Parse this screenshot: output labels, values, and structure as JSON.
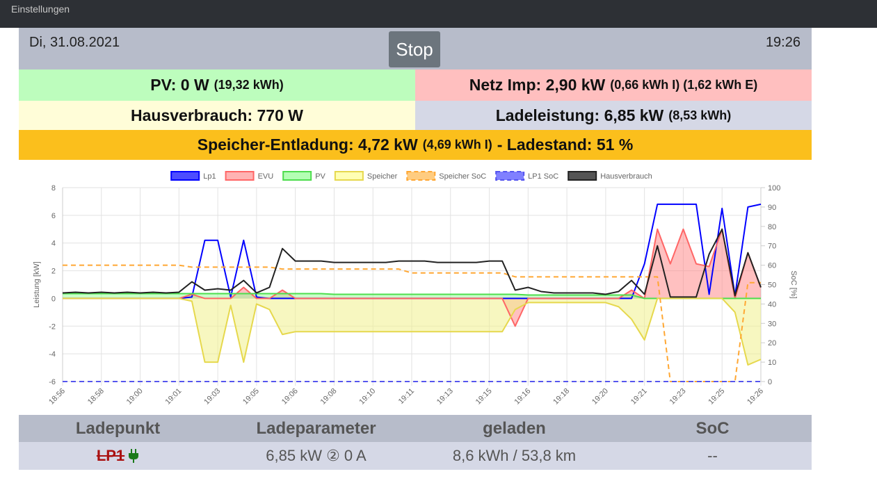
{
  "topbar": {
    "title": "Einstellungen"
  },
  "header": {
    "date": "Di, 31.08.2021",
    "button": "Stop",
    "time": "19:26"
  },
  "status": {
    "pv": {
      "main": "PV: 0 W",
      "detail": "(19,32 kWh)"
    },
    "netz": {
      "main": "Netz Imp: 2,90 kW",
      "detail": "(0,66 kWh I) (1,62 kWh E)"
    },
    "haus": {
      "main": "Hausverbrauch: 770 W"
    },
    "lade": {
      "main": "Ladeleistung: 6,85 kW",
      "detail": "(8,53 kWh)"
    },
    "speicher": {
      "main": "Speicher-Entladung: 4,72 kW",
      "detail": "(4,69 kWh I)",
      "soc": "- Ladestand: 51 %"
    }
  },
  "chart_data": {
    "type": "line",
    "ylabel": "Leistung [kW]",
    "y2label": "SoC [%]",
    "ylim": [
      -6,
      8
    ],
    "yticks": [
      -6,
      -4,
      -2,
      0,
      2,
      4,
      6,
      8
    ],
    "y2lim": [
      0,
      100
    ],
    "y2ticks": [
      0,
      10,
      20,
      30,
      40,
      50,
      60,
      70,
      80,
      90,
      100
    ],
    "grid": true,
    "legend": "top",
    "x": [
      "18:56",
      null,
      null,
      "18:58",
      null,
      null,
      "19:00",
      null,
      null,
      "19:01",
      null,
      null,
      "19:03",
      null,
      null,
      "19:05",
      null,
      null,
      "19:06",
      null,
      null,
      "19:08",
      null,
      null,
      "19:10",
      null,
      null,
      "19:11",
      null,
      null,
      "19:13",
      null,
      null,
      "19:15",
      null,
      null,
      "19:16",
      null,
      null,
      "19:18",
      null,
      null,
      "19:20",
      null,
      null,
      "19:21",
      null,
      null,
      "19:23",
      null,
      null,
      "19:25",
      null,
      null,
      "19:26"
    ],
    "series": [
      {
        "name": "Lp1",
        "color": "#0000ff",
        "legend_fill": "#4d4dff",
        "values": [
          0,
          0,
          0,
          0,
          0,
          0,
          0,
          0,
          0,
          0,
          0.1,
          4.2,
          4.2,
          0.1,
          4.2,
          0.1,
          0,
          0,
          0,
          0,
          0,
          0,
          0,
          0,
          0,
          0,
          0,
          0,
          0,
          0,
          0,
          0,
          0,
          0,
          0,
          0,
          0,
          0,
          0,
          0,
          0,
          0,
          0,
          0,
          0,
          2.5,
          6.8,
          6.8,
          6.8,
          6.8,
          0.3,
          6.5,
          0.2,
          6.6,
          6.8
        ]
      },
      {
        "name": "EVU",
        "color": "#ff6666",
        "legend_fill": "#ffb3b3",
        "fill_color": "rgba(255,130,130,0.5)",
        "values": [
          0,
          0,
          0,
          0,
          0,
          0,
          0,
          0,
          0,
          0,
          0.3,
          0,
          0,
          0,
          0.8,
          0,
          0,
          0.6,
          0,
          0,
          0,
          0,
          0,
          0,
          0,
          0,
          0,
          0,
          0,
          0,
          0,
          0,
          0,
          0,
          0,
          -2.0,
          0,
          0,
          0,
          0,
          0,
          0,
          0,
          0,
          0.6,
          0,
          5.0,
          2.5,
          5.0,
          2.5,
          2.3,
          5.0,
          0,
          3.3,
          0.8
        ]
      },
      {
        "name": "PV",
        "color": "#4ddd4d",
        "legend_fill": "#b3ffb3",
        "fill_color": "rgba(150,255,150,0.5)",
        "values": [
          0.35,
          0.35,
          0.35,
          0.35,
          0.35,
          0.35,
          0.35,
          0.35,
          0.35,
          0.35,
          0.35,
          0.35,
          0.35,
          0.35,
          0.35,
          0.35,
          0.35,
          0.35,
          0.35,
          0.35,
          0.35,
          0.3,
          0.3,
          0.3,
          0.3,
          0.3,
          0.3,
          0.3,
          0.3,
          0.3,
          0.3,
          0.3,
          0.3,
          0.3,
          0.3,
          0.3,
          0.25,
          0.25,
          0.25,
          0.25,
          0.25,
          0.25,
          0.25,
          0.25,
          0.25,
          0,
          0,
          0,
          0,
          0,
          0,
          0,
          0,
          0,
          0
        ]
      },
      {
        "name": "Speicher",
        "color": "#e6d84d",
        "legend_fill": "#ffffb3",
        "fill_color": "rgba(240,240,140,0.55)",
        "values": [
          0,
          0,
          0,
          0,
          0,
          0,
          0,
          0,
          0,
          0,
          -0.2,
          -4.6,
          -4.6,
          -0.5,
          -4.6,
          -0.4,
          -0.8,
          -2.6,
          -2.4,
          -2.4,
          -2.4,
          -2.4,
          -2.4,
          -2.4,
          -2.4,
          -2.4,
          -2.4,
          -2.4,
          -2.4,
          -2.4,
          -2.4,
          -2.4,
          -2.4,
          -2.4,
          -2.4,
          -0.8,
          -0.3,
          -0.3,
          -0.3,
          -0.3,
          -0.3,
          -0.3,
          -0.3,
          -0.6,
          -1.5,
          -3.0,
          0,
          0,
          0,
          0,
          0,
          0,
          -1.0,
          -4.8,
          -4.4
        ]
      },
      {
        "name": "Speicher SoC",
        "color": "#ffa733",
        "legend_fill": "#ffcc80",
        "dashed": true,
        "axis": "y2",
        "values": [
          60,
          60,
          60,
          60,
          60,
          60,
          60,
          60,
          60,
          60,
          59,
          59,
          59,
          59,
          59,
          59,
          59,
          58,
          58,
          58,
          58,
          58,
          58,
          58,
          58,
          58,
          58,
          56,
          56,
          56,
          56,
          56,
          56,
          56,
          56,
          54,
          54,
          54,
          54,
          54,
          54,
          54,
          54,
          54,
          54,
          54,
          54,
          0,
          0,
          0,
          0,
          0,
          0,
          51,
          51
        ]
      },
      {
        "name": "LP1 SoC",
        "color": "#5555ee",
        "legend_fill": "#8080ff",
        "dashed": true,
        "axis": "y2",
        "values": [
          0,
          0,
          0,
          0,
          0,
          0,
          0,
          0,
          0,
          0,
          0,
          0,
          0,
          0,
          0,
          0,
          0,
          0,
          0,
          0,
          0,
          0,
          0,
          0,
          0,
          0,
          0,
          0,
          0,
          0,
          0,
          0,
          0,
          0,
          0,
          0,
          0,
          0,
          0,
          0,
          0,
          0,
          0,
          0,
          0,
          0,
          0,
          0,
          0,
          0,
          0,
          0,
          0,
          0,
          0
        ]
      },
      {
        "name": "Hausverbrauch",
        "color": "#222222",
        "legend_fill": "#555555",
        "values": [
          0.4,
          0.45,
          0.4,
          0.45,
          0.4,
          0.45,
          0.4,
          0.45,
          0.4,
          0.45,
          1.2,
          0.6,
          0.7,
          0.6,
          1.3,
          0.4,
          0.8,
          3.6,
          2.7,
          2.7,
          2.7,
          2.6,
          2.6,
          2.6,
          2.6,
          2.6,
          2.7,
          2.7,
          2.7,
          2.6,
          2.6,
          2.6,
          2.6,
          2.7,
          2.7,
          0.6,
          0.8,
          0.5,
          0.4,
          0.4,
          0.4,
          0.4,
          0.3,
          0.5,
          1.3,
          0.3,
          3.8,
          0.1,
          0.1,
          0.1,
          3.2,
          5.0,
          0.2,
          3.3,
          0.8
        ]
      }
    ]
  },
  "table": {
    "headers": [
      "Ladepunkt",
      "Ladeparameter",
      "geladen",
      "SoC"
    ],
    "rows": [
      [
        "LP1",
        "6,85 kW ② 0 A",
        "8,6 kWh / 53,8 km",
        "--"
      ]
    ]
  }
}
